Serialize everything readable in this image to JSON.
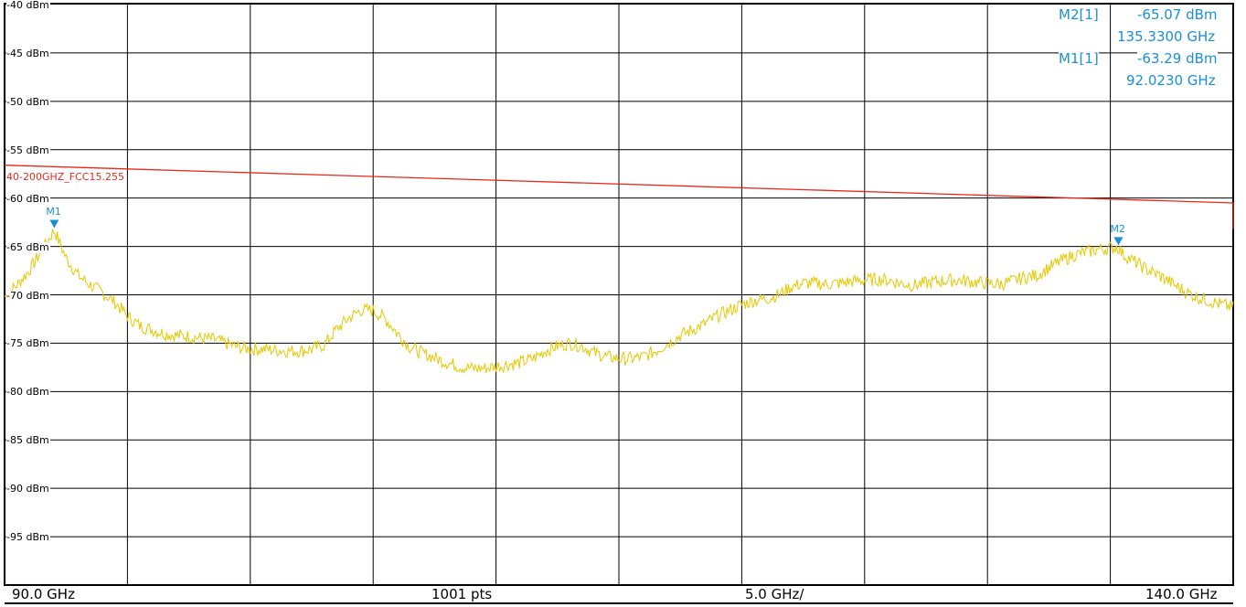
{
  "chart_data": {
    "type": "line",
    "xlabel": "",
    "ylabel": "",
    "xlim": [
      90.0,
      140.0
    ],
    "ylim": [
      -100,
      -40
    ],
    "grid": true,
    "y_ticks": [
      "-40 dBm",
      "-45 dBm",
      "-50 dBm",
      "-55 dBm",
      "-60 dBm",
      "-65 dBm",
      "-70 dBm",
      "-75 dBm",
      "-80 dBm",
      "-85 dBm",
      "-90 dBm",
      "-95 dBm"
    ],
    "series": [
      {
        "name": "",
        "color": "#e6c800",
        "x": [
          90.0,
          90.5,
          91.0,
          91.5,
          92.02,
          92.5,
          93.0,
          93.5,
          94.0,
          94.5,
          95.0,
          95.5,
          96.0,
          96.5,
          97.0,
          97.5,
          98.0,
          98.5,
          99.0,
          99.5,
          100.0,
          100.5,
          101.0,
          101.5,
          102.0,
          102.5,
          103.0,
          103.5,
          104.0,
          104.5,
          105.0,
          105.5,
          106.0,
          106.5,
          107.0,
          107.5,
          108.0,
          108.5,
          109.0,
          109.5,
          110.0,
          110.5,
          111.0,
          111.5,
          112.0,
          112.5,
          113.0,
          113.5,
          114.0,
          114.5,
          115.0,
          115.5,
          116.0,
          116.5,
          117.0,
          117.5,
          118.0,
          118.5,
          119.0,
          119.5,
          120.0,
          120.5,
          121.0,
          121.5,
          122.0,
          122.5,
          123.0,
          123.5,
          124.0,
          124.5,
          125.0,
          125.5,
          126.0,
          126.5,
          127.0,
          127.5,
          128.0,
          128.5,
          129.0,
          129.5,
          130.0,
          130.5,
          131.0,
          131.5,
          132.0,
          132.5,
          133.0,
          133.5,
          134.0,
          134.5,
          135.33,
          135.5,
          136.0,
          136.5,
          137.0,
          137.5,
          138.0,
          138.5,
          139.0,
          139.5,
          140.0
        ],
        "values": [
          -70.2,
          -69.0,
          -67.5,
          -65.5,
          -63.3,
          -66.2,
          -68.0,
          -69.0,
          -69.8,
          -70.8,
          -72.2,
          -73.2,
          -73.6,
          -74.0,
          -74.2,
          -74.3,
          -74.5,
          -74.6,
          -75.0,
          -75.4,
          -75.6,
          -75.6,
          -75.7,
          -75.8,
          -75.8,
          -75.6,
          -75.2,
          -73.6,
          -72.4,
          -71.6,
          -71.6,
          -72.5,
          -74.0,
          -75.4,
          -76.0,
          -76.5,
          -77.0,
          -77.4,
          -77.6,
          -77.6,
          -77.4,
          -77.2,
          -77.0,
          -76.6,
          -75.8,
          -75.3,
          -75.0,
          -75.3,
          -76.0,
          -76.4,
          -76.6,
          -76.6,
          -76.4,
          -75.8,
          -75.0,
          -74.2,
          -73.6,
          -73.0,
          -72.2,
          -71.6,
          -71.0,
          -70.6,
          -70.4,
          -70.0,
          -69.2,
          -68.8,
          -68.8,
          -68.9,
          -68.8,
          -68.6,
          -68.5,
          -68.4,
          -68.5,
          -68.8,
          -69.0,
          -68.8,
          -68.6,
          -68.5,
          -68.5,
          -68.7,
          -68.8,
          -68.9,
          -68.6,
          -68.2,
          -68.0,
          -67.2,
          -66.5,
          -65.9,
          -65.6,
          -65.3,
          -65.07,
          -65.8,
          -66.6,
          -67.4,
          -68.0,
          -68.8,
          -69.6,
          -70.2,
          -70.6,
          -71.0,
          -71.3
        ]
      },
      {
        "name": "40-200GHZ_FCC15.255",
        "color": "#e8291c",
        "x": [
          90.0,
          140.0
        ],
        "values": [
          -56.6,
          -60.5
        ],
        "drop_to": -63.2
      }
    ],
    "markers": [
      {
        "label": "M1",
        "x": 92.023,
        "y": -63.29
      },
      {
        "label": "M2",
        "x": 135.33,
        "y": -65.07
      }
    ]
  },
  "readouts": {
    "m2_name": "M2[1]",
    "m2_level": "-65.07 dBm",
    "m2_freq": "135.3300 GHz",
    "m1_name": "M1[1]",
    "m1_level": "-63.29 dBm",
    "m1_freq": "92.0230 GHz"
  },
  "footer": {
    "start": "90.0 GHz",
    "points": "1001 pts",
    "span_per_div": "5.0 GHz/",
    "stop": "140.0 GHz"
  },
  "limit_line_label": "40-200GHZ_FCC15.255",
  "marker_labels": [
    "M1",
    "M2"
  ],
  "colors": {
    "trace": "#e6c800",
    "limit": "#e8291c",
    "marker": "#1a8fd6",
    "grid": "#000000"
  }
}
